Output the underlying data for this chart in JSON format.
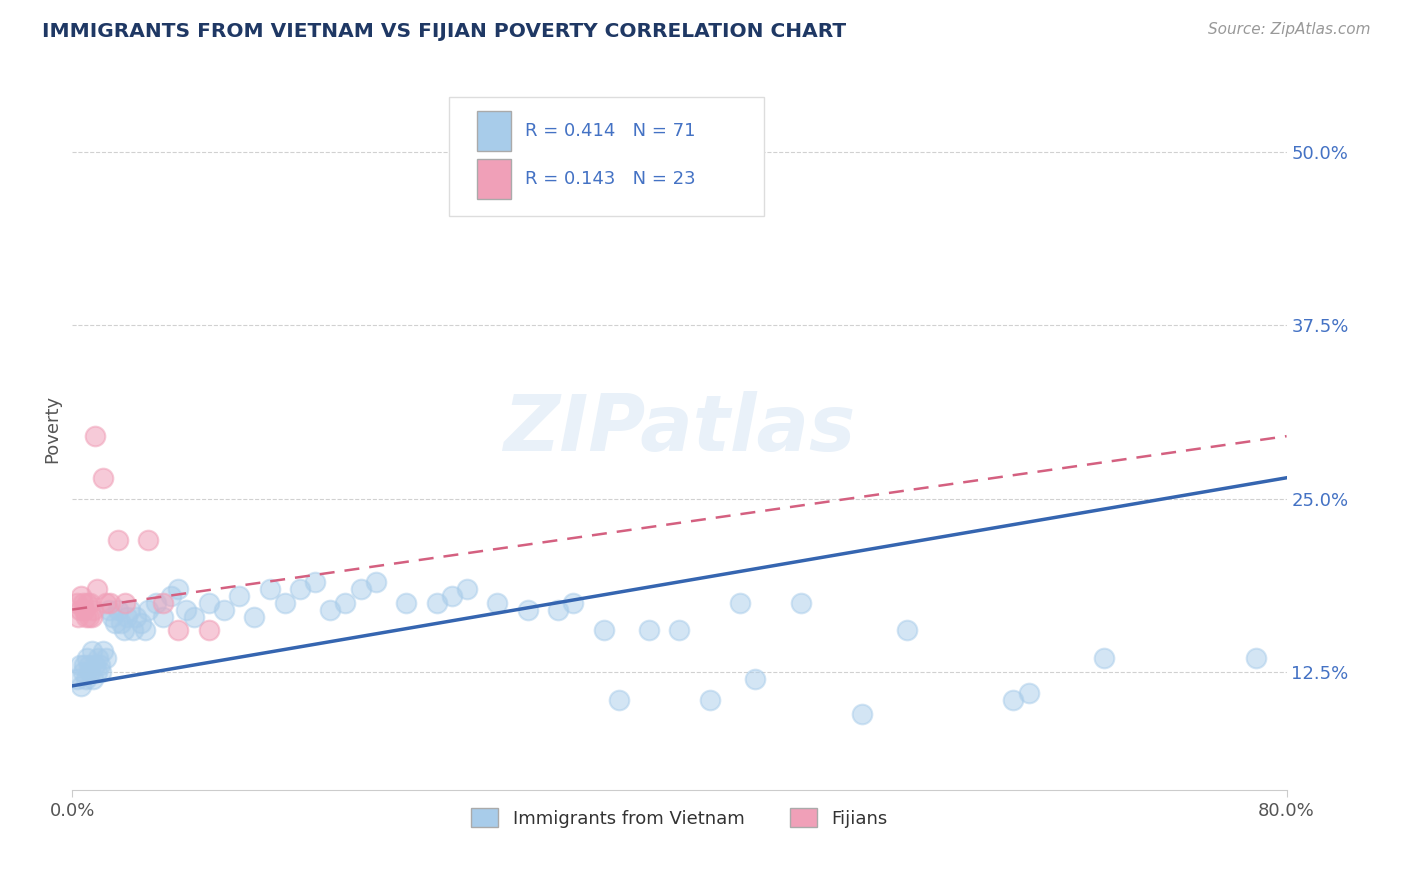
{
  "title": "IMMIGRANTS FROM VIETNAM VS FIJIAN POVERTY CORRELATION CHART",
  "source_text": "Source: ZipAtlas.com",
  "ylabel": "Poverty",
  "ytick_labels": [
    "12.5%",
    "25.0%",
    "37.5%",
    "50.0%"
  ],
  "ytick_values": [
    0.125,
    0.25,
    0.375,
    0.5
  ],
  "xmin": 0.0,
  "xmax": 0.8,
  "ymin": 0.04,
  "ymax": 0.56,
  "watermark": "ZIPatlas",
  "legend_r1": "R = 0.414",
  "legend_n1": "N = 71",
  "legend_r2": "R = 0.143",
  "legend_n2": "N = 23",
  "legend_label1": "Immigrants from Vietnam",
  "legend_label2": "Fijians",
  "blue_color": "#A8CCEA",
  "pink_color": "#F0A0B8",
  "line_blue": "#3565B0",
  "line_pink": "#D46080",
  "title_color": "#1F3864",
  "legend_text_color": "#4472C4",
  "blue_scatter": [
    [
      0.003,
      0.12
    ],
    [
      0.005,
      0.13
    ],
    [
      0.006,
      0.115
    ],
    [
      0.007,
      0.125
    ],
    [
      0.008,
      0.13
    ],
    [
      0.009,
      0.12
    ],
    [
      0.01,
      0.135
    ],
    [
      0.011,
      0.13
    ],
    [
      0.012,
      0.125
    ],
    [
      0.013,
      0.14
    ],
    [
      0.014,
      0.12
    ],
    [
      0.015,
      0.13
    ],
    [
      0.016,
      0.125
    ],
    [
      0.017,
      0.135
    ],
    [
      0.018,
      0.13
    ],
    [
      0.019,
      0.125
    ],
    [
      0.02,
      0.14
    ],
    [
      0.022,
      0.135
    ],
    [
      0.024,
      0.17
    ],
    [
      0.026,
      0.165
    ],
    [
      0.028,
      0.16
    ],
    [
      0.03,
      0.17
    ],
    [
      0.032,
      0.16
    ],
    [
      0.034,
      0.155
    ],
    [
      0.036,
      0.165
    ],
    [
      0.038,
      0.17
    ],
    [
      0.04,
      0.155
    ],
    [
      0.042,
      0.165
    ],
    [
      0.045,
      0.16
    ],
    [
      0.048,
      0.155
    ],
    [
      0.05,
      0.17
    ],
    [
      0.055,
      0.175
    ],
    [
      0.06,
      0.165
    ],
    [
      0.065,
      0.18
    ],
    [
      0.07,
      0.185
    ],
    [
      0.075,
      0.17
    ],
    [
      0.08,
      0.165
    ],
    [
      0.09,
      0.175
    ],
    [
      0.1,
      0.17
    ],
    [
      0.11,
      0.18
    ],
    [
      0.12,
      0.165
    ],
    [
      0.13,
      0.185
    ],
    [
      0.14,
      0.175
    ],
    [
      0.15,
      0.185
    ],
    [
      0.16,
      0.19
    ],
    [
      0.17,
      0.17
    ],
    [
      0.18,
      0.175
    ],
    [
      0.19,
      0.185
    ],
    [
      0.2,
      0.19
    ],
    [
      0.22,
      0.175
    ],
    [
      0.24,
      0.175
    ],
    [
      0.25,
      0.18
    ],
    [
      0.26,
      0.185
    ],
    [
      0.28,
      0.175
    ],
    [
      0.3,
      0.17
    ],
    [
      0.32,
      0.17
    ],
    [
      0.33,
      0.175
    ],
    [
      0.35,
      0.155
    ],
    [
      0.36,
      0.105
    ],
    [
      0.38,
      0.155
    ],
    [
      0.4,
      0.155
    ],
    [
      0.42,
      0.105
    ],
    [
      0.44,
      0.175
    ],
    [
      0.45,
      0.12
    ],
    [
      0.48,
      0.175
    ],
    [
      0.52,
      0.095
    ],
    [
      0.55,
      0.155
    ],
    [
      0.62,
      0.105
    ],
    [
      0.63,
      0.11
    ],
    [
      0.68,
      0.135
    ],
    [
      0.78,
      0.135
    ]
  ],
  "pink_scatter": [
    [
      0.003,
      0.175
    ],
    [
      0.004,
      0.165
    ],
    [
      0.005,
      0.17
    ],
    [
      0.006,
      0.18
    ],
    [
      0.007,
      0.175
    ],
    [
      0.008,
      0.17
    ],
    [
      0.009,
      0.165
    ],
    [
      0.01,
      0.175
    ],
    [
      0.011,
      0.165
    ],
    [
      0.012,
      0.175
    ],
    [
      0.013,
      0.165
    ],
    [
      0.014,
      0.17
    ],
    [
      0.015,
      0.295
    ],
    [
      0.016,
      0.185
    ],
    [
      0.02,
      0.265
    ],
    [
      0.022,
      0.175
    ],
    [
      0.025,
      0.175
    ],
    [
      0.03,
      0.22
    ],
    [
      0.035,
      0.175
    ],
    [
      0.05,
      0.22
    ],
    [
      0.06,
      0.175
    ],
    [
      0.07,
      0.155
    ],
    [
      0.09,
      0.155
    ]
  ],
  "blue_line_x": [
    0.0,
    0.8
  ],
  "blue_line_y": [
    0.115,
    0.265
  ],
  "pink_line_x": [
    0.0,
    0.8
  ],
  "pink_line_y": [
    0.17,
    0.295
  ],
  "grid_color": "#CCCCCC",
  "bg_color": "#FFFFFF"
}
